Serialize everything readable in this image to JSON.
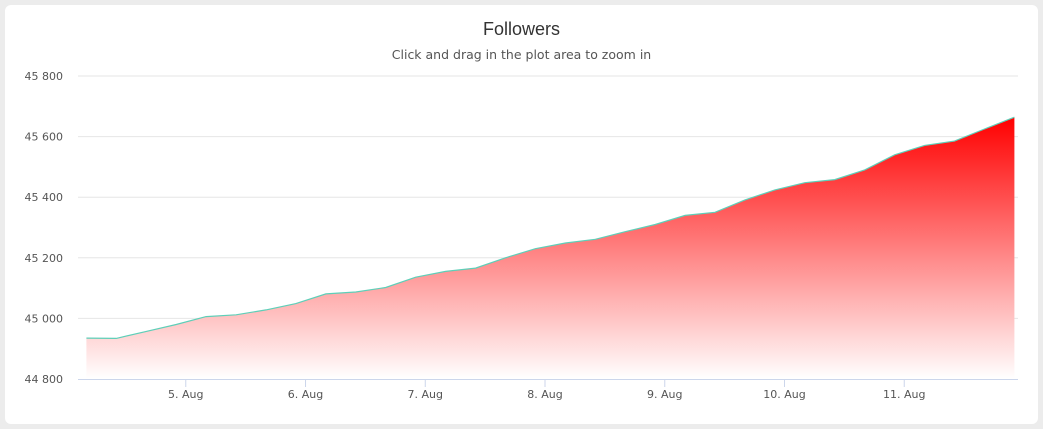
{
  "chart_data": {
    "type": "area",
    "title": "Followers",
    "subtitle": "Click and drag in the plot area to zoom in",
    "xlabel": "",
    "ylabel": "",
    "ylim": [
      44800,
      45800
    ],
    "yticks": [
      44800,
      45000,
      45200,
      45400,
      45600,
      45800
    ],
    "ytick_labels": [
      "44 800",
      "45 000",
      "45 200",
      "45 400",
      "45 600",
      "45 800"
    ],
    "xlim": [
      4.1,
      11.95
    ],
    "xticks": [
      5,
      6,
      7,
      8,
      9,
      10,
      11
    ],
    "xtick_labels": [
      "5. Aug",
      "6. Aug",
      "7. Aug",
      "8. Aug",
      "9. Aug",
      "10. Aug",
      "11. Aug"
    ],
    "grid": true,
    "legend": "none",
    "colors": {
      "line": "#5ecfb8",
      "fill_top": "#ff0000",
      "fill_bottom": "#ffffff",
      "grid": "#e6e6e6",
      "axis": "#ccd6eb"
    },
    "series": [
      {
        "x": [
          4.17,
          4.42,
          4.67,
          4.92,
          5.17,
          5.42,
          5.67,
          5.92,
          6.17,
          6.42,
          6.67,
          6.92,
          7.17,
          7.42,
          7.67,
          7.92,
          8.17,
          8.42,
          8.67,
          8.92,
          9.17,
          9.42,
          9.67,
          9.92,
          10.17,
          10.42,
          10.67,
          10.92,
          11.17,
          11.42,
          11.67,
          11.92
        ],
        "values": [
          44935,
          44934,
          44957,
          44980,
          45006,
          45012,
          45028,
          45049,
          45081,
          45087,
          45102,
          45136,
          45155,
          45166,
          45200,
          45230,
          45249,
          45261,
          45286,
          45310,
          45340,
          45350,
          45391,
          45424,
          45448,
          45458,
          45490,
          45540,
          45571,
          45585,
          45625,
          45664
        ]
      }
    ]
  }
}
